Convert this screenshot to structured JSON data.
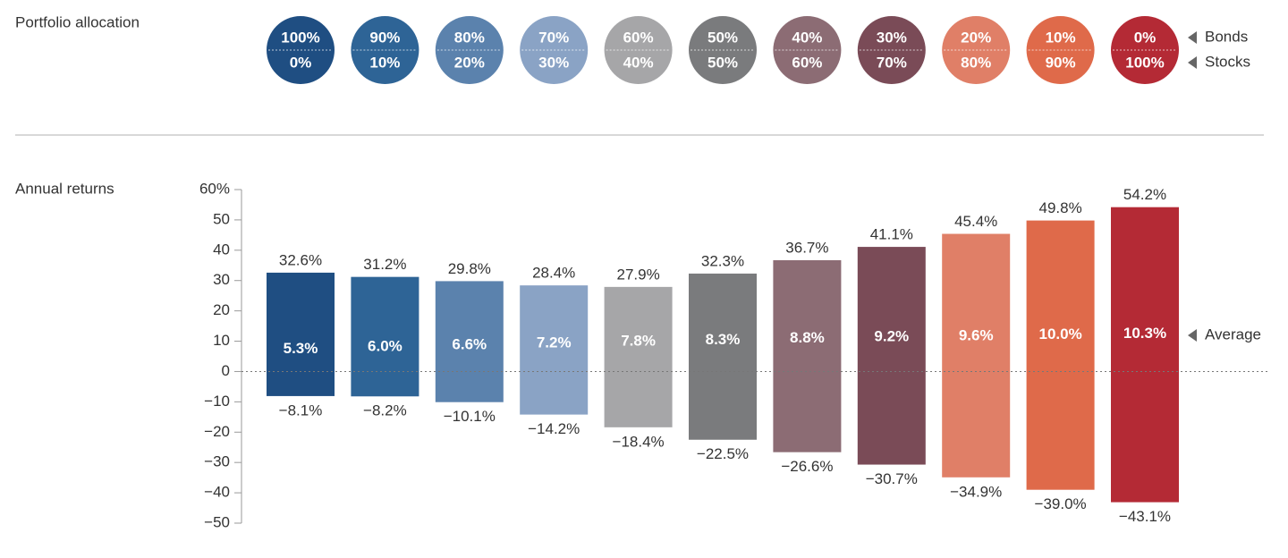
{
  "chart_data": {
    "type": "range_bar",
    "allocation_title": "Portfolio allocation",
    "bonds_label": "Bonds",
    "stocks_label": "Stocks",
    "bonds": [
      "100%",
      "90%",
      "80%",
      "70%",
      "60%",
      "50%",
      "40%",
      "30%",
      "20%",
      "10%",
      "0%"
    ],
    "stocks": [
      "0%",
      "10%",
      "20%",
      "30%",
      "40%",
      "50%",
      "60%",
      "70%",
      "80%",
      "90%",
      "100%"
    ],
    "y_label": "Annual returns",
    "average_label": "Average",
    "colors": [
      "#1f4e82",
      "#2e6496",
      "#5b82ad",
      "#8aa3c5",
      "#a6a6a8",
      "#7a7b7d",
      "#8c6c74",
      "#7a4b57",
      "#e07f67",
      "#df6a4a",
      "#b42a35"
    ],
    "max": [
      32.6,
      31.2,
      29.8,
      28.4,
      27.9,
      32.3,
      36.7,
      41.1,
      45.4,
      49.8,
      54.2
    ],
    "max_labels": [
      "32.6%",
      "31.2%",
      "29.8%",
      "28.4%",
      "27.9%",
      "32.3%",
      "36.7%",
      "41.1%",
      "45.4%",
      "49.8%",
      "54.2%"
    ],
    "min": [
      -8.1,
      -8.2,
      -10.1,
      -14.2,
      -18.4,
      -22.5,
      -26.6,
      -30.7,
      -34.9,
      -39.0,
      -43.1
    ],
    "min_labels": [
      "−8.1%",
      "−8.2%",
      "−10.1%",
      "−14.2%",
      "−18.4%",
      "−22.5%",
      "−26.6%",
      "−30.7%",
      "−34.9%",
      "−39.0%",
      "−43.1%"
    ],
    "average": [
      5.3,
      6.0,
      6.6,
      7.2,
      7.8,
      8.3,
      8.8,
      9.2,
      9.6,
      10.0,
      10.3
    ],
    "average_labels": [
      "5.3%",
      "6.0%",
      "6.6%",
      "7.2%",
      "7.8%",
      "8.3%",
      "8.8%",
      "9.2%",
      "9.6%",
      "10.0%",
      "10.3%"
    ],
    "ylim": [
      -50,
      60
    ],
    "yticks": [
      {
        "value": 60,
        "label": "60%"
      },
      50,
      40,
      30,
      20,
      10,
      0,
      {
        "value": -10,
        "label": "−10"
      },
      {
        "value": -20,
        "label": "−20"
      },
      {
        "value": -30,
        "label": "−30"
      },
      {
        "value": -40,
        "label": "−40"
      },
      {
        "value": -50,
        "label": "−50"
      }
    ]
  }
}
